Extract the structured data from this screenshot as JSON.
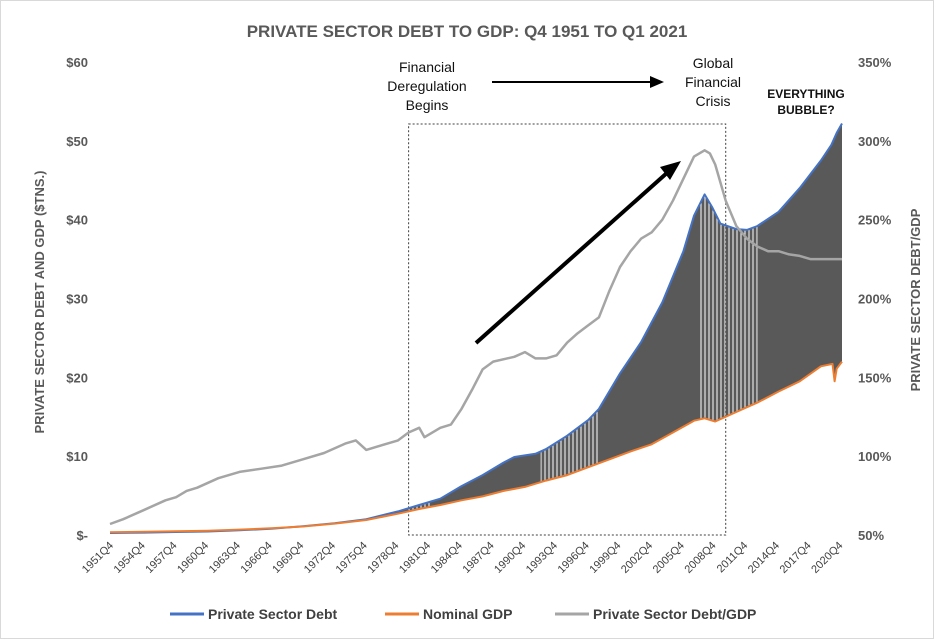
{
  "chart_data": {
    "type": "area",
    "title": "PRIVATE SECTOR DEBT TO GDP:  Q4 1951 TO Q1 2021",
    "ylabel_left": "PRIVATE SECTOR DEBT AND GDP ($TNS.)",
    "ylabel_right": "PRIVATE SECTOR DEBT/GDP",
    "ylim_left": [
      0,
      60
    ],
    "ylim_right": [
      0.5,
      3.5
    ],
    "yticks_left": [
      {
        "value": 0,
        "label": "$-"
      },
      {
        "value": 10,
        "label": "$10"
      },
      {
        "value": 20,
        "label": "$20"
      },
      {
        "value": 30,
        "label": "$30"
      },
      {
        "value": 40,
        "label": "$40"
      },
      {
        "value": 50,
        "label": "$50"
      },
      {
        "value": 60,
        "label": "$60"
      }
    ],
    "yticks_right": [
      {
        "value": 0.5,
        "label": "50%"
      },
      {
        "value": 1.0,
        "label": "100%"
      },
      {
        "value": 1.5,
        "label": "150%"
      },
      {
        "value": 2.0,
        "label": "200%"
      },
      {
        "value": 2.5,
        "label": "250%"
      },
      {
        "value": 3.0,
        "label": "300%"
      },
      {
        "value": 3.5,
        "label": "350%"
      }
    ],
    "xlim": [
      1951.75,
      2021.0
    ],
    "xticks": [
      {
        "value": 1951.75,
        "label": "1951Q4"
      },
      {
        "value": 1954.75,
        "label": "1954Q4"
      },
      {
        "value": 1957.75,
        "label": "1957Q4"
      },
      {
        "value": 1960.75,
        "label": "1960Q4"
      },
      {
        "value": 1963.75,
        "label": "1963Q4"
      },
      {
        "value": 1966.75,
        "label": "1966Q4"
      },
      {
        "value": 1969.75,
        "label": "1969Q4"
      },
      {
        "value": 1972.75,
        "label": "1972Q4"
      },
      {
        "value": 1975.75,
        "label": "1975Q4"
      },
      {
        "value": 1978.75,
        "label": "1978Q4"
      },
      {
        "value": 1981.75,
        "label": "1981Q4"
      },
      {
        "value": 1984.75,
        "label": "1984Q4"
      },
      {
        "value": 1987.75,
        "label": "1987Q4"
      },
      {
        "value": 1990.75,
        "label": "1990Q4"
      },
      {
        "value": 1993.75,
        "label": "1993Q4"
      },
      {
        "value": 1996.75,
        "label": "1996Q4"
      },
      {
        "value": 1999.75,
        "label": "1999Q4"
      },
      {
        "value": 2002.75,
        "label": "2002Q4"
      },
      {
        "value": 2005.75,
        "label": "2005Q4"
      },
      {
        "value": 2008.75,
        "label": "2008Q4"
      },
      {
        "value": 2011.75,
        "label": "2011Q4"
      },
      {
        "value": 2014.75,
        "label": "2014Q4"
      },
      {
        "value": 2017.75,
        "label": "2017Q4"
      },
      {
        "value": 2020.75,
        "label": "2020Q4"
      }
    ],
    "series": [
      {
        "name": "Private Sector Debt",
        "axis": "left",
        "color": "#4472c4",
        "points": [
          [
            1951.75,
            0.25
          ],
          [
            1955,
            0.3
          ],
          [
            1958,
            0.38
          ],
          [
            1961,
            0.45
          ],
          [
            1964,
            0.6
          ],
          [
            1967,
            0.8
          ],
          [
            1970,
            1.1
          ],
          [
            1973,
            1.5
          ],
          [
            1976,
            2.0
          ],
          [
            1979,
            3.0
          ],
          [
            1981,
            3.8
          ],
          [
            1983,
            4.6
          ],
          [
            1985,
            6.2
          ],
          [
            1987,
            7.6
          ],
          [
            1989,
            9.2
          ],
          [
            1990,
            9.9
          ],
          [
            1992,
            10.3
          ],
          [
            1993,
            10.9
          ],
          [
            1995,
            12.6
          ],
          [
            1997,
            14.6
          ],
          [
            1998,
            16.0
          ],
          [
            2000,
            20.5
          ],
          [
            2002,
            24.5
          ],
          [
            2004,
            29.5
          ],
          [
            2006,
            36.0
          ],
          [
            2007,
            40.5
          ],
          [
            2008,
            43.2
          ],
          [
            2008.75,
            41.5
          ],
          [
            2009.5,
            39.5
          ],
          [
            2011,
            38.8
          ],
          [
            2012,
            38.7
          ],
          [
            2013,
            39.2
          ],
          [
            2015,
            41.0
          ],
          [
            2017,
            44.0
          ],
          [
            2019,
            47.5
          ],
          [
            2020,
            49.5
          ],
          [
            2020.5,
            51.0
          ],
          [
            2021.0,
            52.2
          ]
        ]
      },
      {
        "name": "Nominal GDP",
        "axis": "left",
        "color": "#ed7d31",
        "points": [
          [
            1951.75,
            0.35
          ],
          [
            1955,
            0.42
          ],
          [
            1958,
            0.47
          ],
          [
            1961,
            0.55
          ],
          [
            1964,
            0.68
          ],
          [
            1967,
            0.85
          ],
          [
            1970,
            1.08
          ],
          [
            1973,
            1.45
          ],
          [
            1976,
            1.9
          ],
          [
            1979,
            2.7
          ],
          [
            1981,
            3.3
          ],
          [
            1983,
            3.8
          ],
          [
            1985,
            4.4
          ],
          [
            1987,
            4.9
          ],
          [
            1989,
            5.6
          ],
          [
            1991,
            6.1
          ],
          [
            1993,
            6.9
          ],
          [
            1995,
            7.6
          ],
          [
            1997,
            8.6
          ],
          [
            1999,
            9.6
          ],
          [
            2001,
            10.6
          ],
          [
            2003,
            11.5
          ],
          [
            2005,
            13.0
          ],
          [
            2007,
            14.5
          ],
          [
            2008,
            14.8
          ],
          [
            2009,
            14.4
          ],
          [
            2011,
            15.6
          ],
          [
            2013,
            16.8
          ],
          [
            2015,
            18.2
          ],
          [
            2017,
            19.5
          ],
          [
            2019,
            21.4
          ],
          [
            2020.1,
            21.7
          ],
          [
            2020.3,
            19.5
          ],
          [
            2020.5,
            21.1
          ],
          [
            2021.0,
            22.0
          ]
        ]
      },
      {
        "name": "Private Sector Debt/GDP",
        "axis": "right",
        "color": "#a5a5a5",
        "points": [
          [
            1951.75,
            0.57
          ],
          [
            1953,
            0.6
          ],
          [
            1955,
            0.66
          ],
          [
            1957,
            0.72
          ],
          [
            1958,
            0.74
          ],
          [
            1959,
            0.78
          ],
          [
            1960,
            0.8
          ],
          [
            1962,
            0.86
          ],
          [
            1964,
            0.9
          ],
          [
            1966,
            0.92
          ],
          [
            1968,
            0.94
          ],
          [
            1970,
            0.98
          ],
          [
            1972,
            1.02
          ],
          [
            1974,
            1.08
          ],
          [
            1975,
            1.1
          ],
          [
            1976,
            1.04
          ],
          [
            1977,
            1.06
          ],
          [
            1979,
            1.1
          ],
          [
            1980,
            1.15
          ],
          [
            1981,
            1.18
          ],
          [
            1981.5,
            1.12
          ],
          [
            1983,
            1.18
          ],
          [
            1984,
            1.2
          ],
          [
            1985,
            1.3
          ],
          [
            1986,
            1.42
          ],
          [
            1987,
            1.55
          ],
          [
            1988,
            1.6
          ],
          [
            1990,
            1.63
          ],
          [
            1991,
            1.66
          ],
          [
            1992,
            1.62
          ],
          [
            1993,
            1.62
          ],
          [
            1994,
            1.64
          ],
          [
            1995,
            1.72
          ],
          [
            1996,
            1.78
          ],
          [
            1997,
            1.83
          ],
          [
            1998,
            1.88
          ],
          [
            1999,
            2.05
          ],
          [
            2000,
            2.2
          ],
          [
            2001,
            2.3
          ],
          [
            2002,
            2.38
          ],
          [
            2003,
            2.42
          ],
          [
            2004,
            2.5
          ],
          [
            2005,
            2.62
          ],
          [
            2006,
            2.76
          ],
          [
            2007,
            2.9
          ],
          [
            2008,
            2.94
          ],
          [
            2008.5,
            2.92
          ],
          [
            2009,
            2.85
          ],
          [
            2010,
            2.62
          ],
          [
            2011,
            2.46
          ],
          [
            2012,
            2.38
          ],
          [
            2013,
            2.33
          ],
          [
            2014,
            2.3
          ],
          [
            2015,
            2.3
          ],
          [
            2016,
            2.28
          ],
          [
            2017,
            2.27
          ],
          [
            2018,
            2.25
          ],
          [
            2019,
            2.25
          ],
          [
            2020,
            2.25
          ],
          [
            2021.0,
            2.25
          ]
        ]
      }
    ],
    "annotations": [
      {
        "lines": [
          "Financial",
          "Deregulation",
          "Begins"
        ]
      },
      {
        "lines": [
          "Global",
          "Financial",
          "Crisis"
        ]
      },
      {
        "lines": [
          "EVERYTHING",
          "BUBBLE?"
        ]
      }
    ],
    "highlight_box_x": [
      1980.0,
      2010.0
    ],
    "hatched_ranges": [
      [
        1980.0,
        1982.0
      ],
      [
        1992.5,
        1998.0
      ],
      [
        2007.5,
        2013.0
      ]
    ],
    "legend": [
      "Private Sector Debt",
      "Nominal GDP",
      "Private Sector Debt/GDP"
    ],
    "legend_position": "bottom",
    "fill_color": "#595959",
    "grid": false
  }
}
